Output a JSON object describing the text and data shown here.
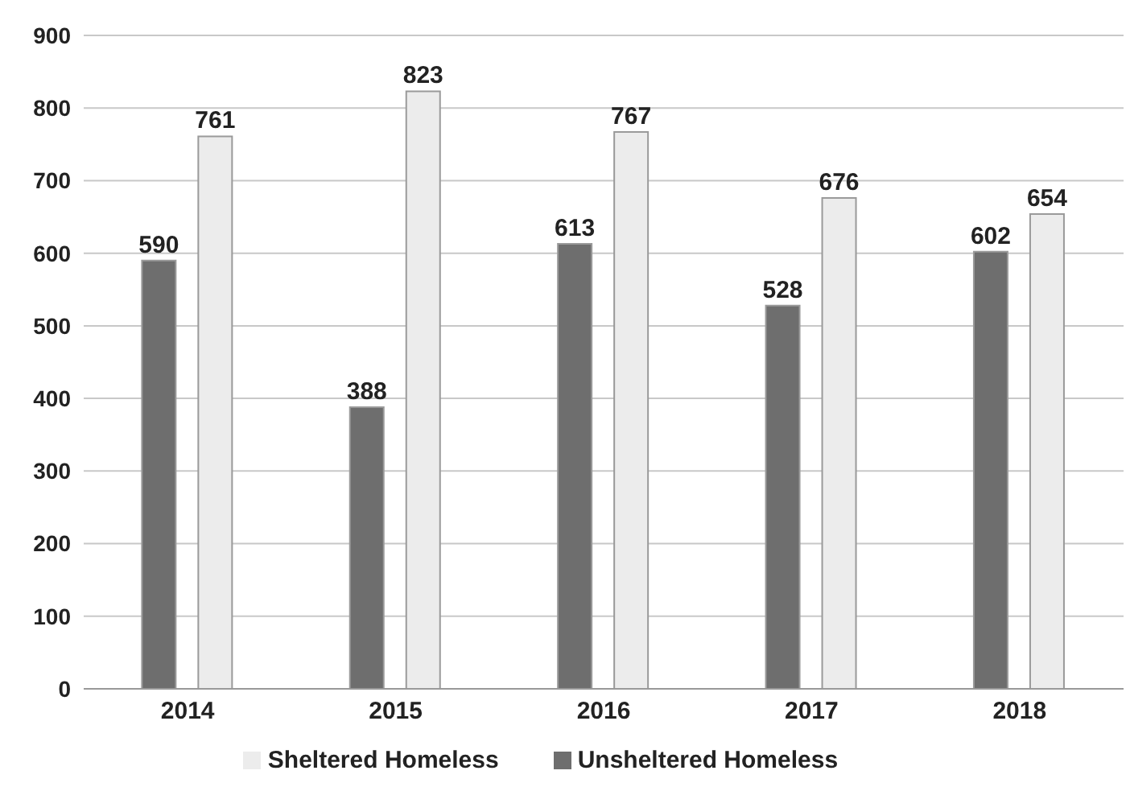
{
  "chart_data": {
    "type": "bar",
    "categories": [
      "2014",
      "2015",
      "2016",
      "2017",
      "2018"
    ],
    "series": [
      {
        "name": "Unsheltered Homeless",
        "color": "#6e6e6e",
        "values": [
          590,
          388,
          613,
          528,
          602
        ]
      },
      {
        "name": "Sheltered Homeless",
        "color": "#ececec",
        "values": [
          761,
          823,
          767,
          676,
          654
        ]
      }
    ],
    "ylim": [
      0,
      900
    ],
    "yticks": [
      0,
      100,
      200,
      300,
      400,
      500,
      600,
      700,
      800,
      900
    ],
    "grid": "y",
    "legend": "bottom",
    "data_labels": true
  }
}
